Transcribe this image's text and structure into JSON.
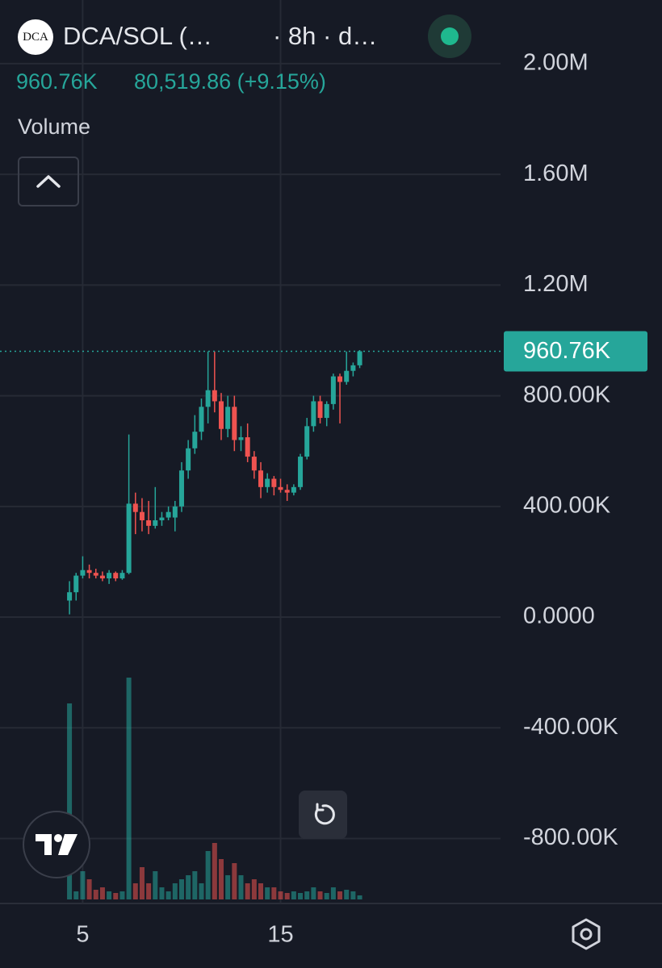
{
  "header": {
    "logo": "DCA",
    "symbol": "DCA/SOL (…",
    "interval": "· 8h · d…",
    "price": "960.76K",
    "change": "80,519.86 (+9.15%)",
    "indicator": "Volume"
  },
  "chart_data": {
    "type": "candlestick",
    "categories": [
      null,
      null,
      "5",
      null,
      null,
      null,
      null,
      null,
      null,
      null,
      null,
      null,
      null,
      null,
      null,
      null,
      null,
      null,
      null,
      null,
      null,
      null,
      null,
      null,
      null,
      null,
      null,
      null,
      null,
      null,
      null,
      null,
      "15",
      null,
      null,
      null,
      null,
      null,
      null,
      null,
      null,
      null,
      null,
      null,
      null
    ],
    "open": [
      60000,
      90000,
      150000,
      170000,
      160000,
      150000,
      140000,
      160000,
      140000,
      160000,
      410000,
      380000,
      350000,
      330000,
      350000,
      360000,
      360000,
      400000,
      530000,
      610000,
      670000,
      760000,
      820000,
      780000,
      680000,
      760000,
      640000,
      650000,
      580000,
      530000,
      470000,
      500000,
      470000,
      460000,
      450000,
      470000,
      580000,
      690000,
      780000,
      720000,
      770000,
      870000,
      850000,
      890000,
      910000
    ],
    "high": [
      130000,
      160000,
      220000,
      190000,
      175000,
      165000,
      170000,
      165000,
      170000,
      660000,
      450000,
      430000,
      420000,
      470000,
      380000,
      400000,
      420000,
      560000,
      640000,
      730000,
      790000,
      960000,
      960000,
      810000,
      800000,
      800000,
      690000,
      700000,
      600000,
      560000,
      520000,
      510000,
      500000,
      480000,
      480000,
      590000,
      720000,
      800000,
      800000,
      780000,
      880000,
      880000,
      960000,
      920000,
      965000
    ],
    "low": [
      10000,
      60000,
      140000,
      140000,
      140000,
      130000,
      120000,
      130000,
      135000,
      155000,
      300000,
      310000,
      300000,
      320000,
      330000,
      350000,
      310000,
      380000,
      500000,
      590000,
      640000,
      700000,
      740000,
      640000,
      650000,
      600000,
      600000,
      560000,
      500000,
      430000,
      450000,
      440000,
      450000,
      420000,
      440000,
      460000,
      570000,
      670000,
      700000,
      690000,
      750000,
      700000,
      840000,
      870000,
      900000
    ],
    "close": [
      90000,
      150000,
      170000,
      160000,
      150000,
      140000,
      160000,
      140000,
      160000,
      410000,
      380000,
      350000,
      330000,
      350000,
      360000,
      380000,
      400000,
      530000,
      610000,
      670000,
      760000,
      820000,
      780000,
      680000,
      760000,
      640000,
      650000,
      580000,
      530000,
      470000,
      500000,
      470000,
      460000,
      450000,
      470000,
      580000,
      690000,
      780000,
      720000,
      770000,
      870000,
      850000,
      890000,
      910000,
      960760
    ],
    "volume": [
      243,
      10,
      35,
      25,
      12,
      15,
      10,
      8,
      10,
      275,
      20,
      40,
      20,
      35,
      15,
      10,
      20,
      25,
      30,
      35,
      20,
      60,
      70,
      50,
      30,
      45,
      30,
      20,
      25,
      20,
      15,
      15,
      10,
      8,
      10,
      8,
      10,
      15,
      10,
      8,
      15,
      10,
      12,
      10,
      5
    ],
    "up_color": "#26a69a",
    "down_color": "#ef5350",
    "ylim": [
      -1020000,
      2230000
    ],
    "yticks": [
      {
        "value": 2000000,
        "label": "2.00M"
      },
      {
        "value": 1600000,
        "label": "1.60M"
      },
      {
        "value": 1200000,
        "label": "1.20M"
      },
      {
        "value": 800000,
        "label": "800.00K"
      },
      {
        "value": 400000,
        "label": "400.00K"
      },
      {
        "value": 0,
        "label": "0.0000"
      },
      {
        "value": -400000,
        "label": "-400.00K"
      },
      {
        "value": -800000,
        "label": "-800.00K"
      }
    ],
    "last_price": {
      "value": 960760,
      "label": "960.76K"
    },
    "grid": true
  }
}
